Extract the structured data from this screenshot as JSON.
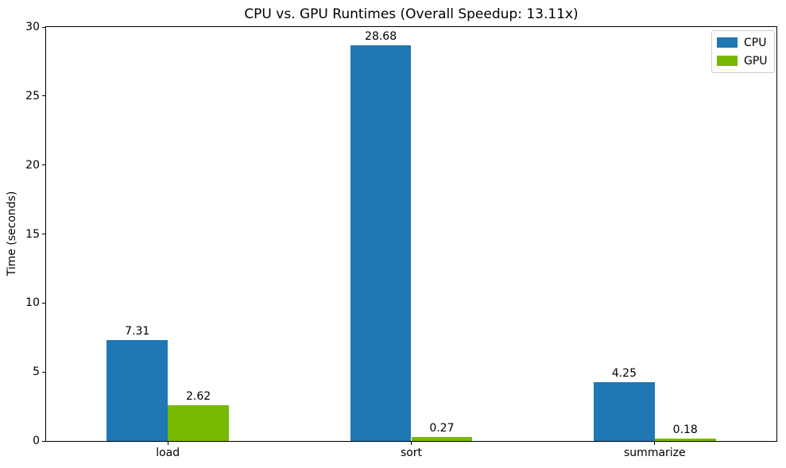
{
  "chart_data": {
    "type": "bar",
    "title": "CPU vs. GPU Runtimes (Overall Speedup: 13.11x)",
    "xlabel": "",
    "ylabel": "Time (seconds)",
    "categories": [
      "load",
      "sort",
      "summarize"
    ],
    "series": [
      {
        "name": "CPU",
        "color": "#1f77b4",
        "values": [
          7.31,
          28.68,
          4.25
        ]
      },
      {
        "name": "GPU",
        "color": "#76b900",
        "values": [
          2.62,
          0.27,
          0.18
        ]
      }
    ],
    "ylim": [
      0,
      30
    ],
    "yticks": [
      0,
      5,
      10,
      15,
      20,
      25,
      30
    ],
    "bar_width_fraction": 0.2508,
    "value_decimals": 2,
    "grid": false,
    "legend_position": "upper-right",
    "overall_speedup": "13.11x",
    "colors": {
      "spine": "#000000",
      "text": "#000000",
      "background": "#ffffff",
      "legend_border": "#cccccc"
    }
  }
}
